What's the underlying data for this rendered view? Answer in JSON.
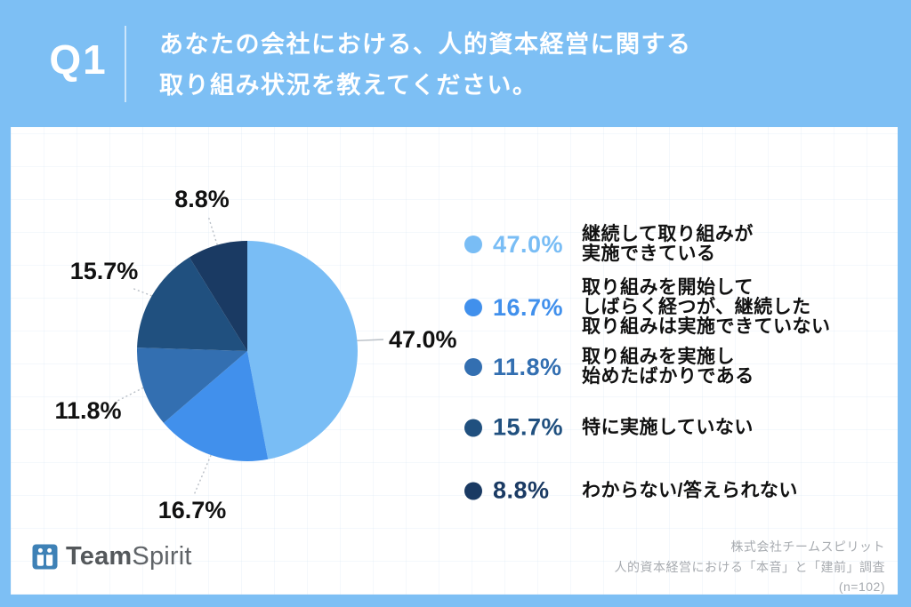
{
  "colors": {
    "background_blue": "#7DBFF4",
    "card_white": "#FFFFFF",
    "label_black": "#111111",
    "leader_gray": "#B9BFC6",
    "footer_gray": "#A7ABB0",
    "logo_blue": "#3E81B6"
  },
  "header": {
    "q_number": "Q1",
    "question_line1": "あなたの会社における、人的資本経営に関する",
    "question_line2": "取り組み状況を教えてください。"
  },
  "chart_data": {
    "type": "pie",
    "start_angle_deg": 0,
    "direction": "clockwise",
    "unit": "%",
    "slices": [
      {
        "label": "継続して取り組みが実施できている",
        "value": 47.0,
        "color": "#79BDF5"
      },
      {
        "label": "取り組みを開始してしばらく経つが、継続した取り組みは実施できていない",
        "value": 16.7,
        "color": "#4190EC"
      },
      {
        "label": "取り組みを実施し始めたばかりである",
        "value": 11.8,
        "color": "#336FB1"
      },
      {
        "label": "特に実施していない",
        "value": 15.7,
        "color": "#20507F"
      },
      {
        "label": "わからない/答えられない",
        "value": 8.8,
        "color": "#1A3A63"
      }
    ]
  },
  "legend": {
    "items": [
      {
        "percent": "47.0%",
        "text": "継続して取り組みが\n実施できている",
        "color": "#79BDF5"
      },
      {
        "percent": "16.7%",
        "text": "取り組みを開始して\nしばらく経つが、継続した\n取り組みは実施できていない",
        "color": "#4190EC"
      },
      {
        "percent": "11.8%",
        "text": "取り組みを実施し\n始めたばかりである",
        "color": "#336FB1"
      },
      {
        "percent": "15.7%",
        "text": "特に実施していない",
        "color": "#20507F"
      },
      {
        "percent": "8.8%",
        "text": "わからない/答えられない",
        "color": "#1A3A63"
      }
    ]
  },
  "footer": {
    "logo_team": "Team",
    "logo_spirit": "Spirit",
    "source_line1": "株式会社チームスピリット",
    "source_line2": "人的資本経営における「本音」と「建前」調査",
    "source_line3": "(n=102)"
  }
}
